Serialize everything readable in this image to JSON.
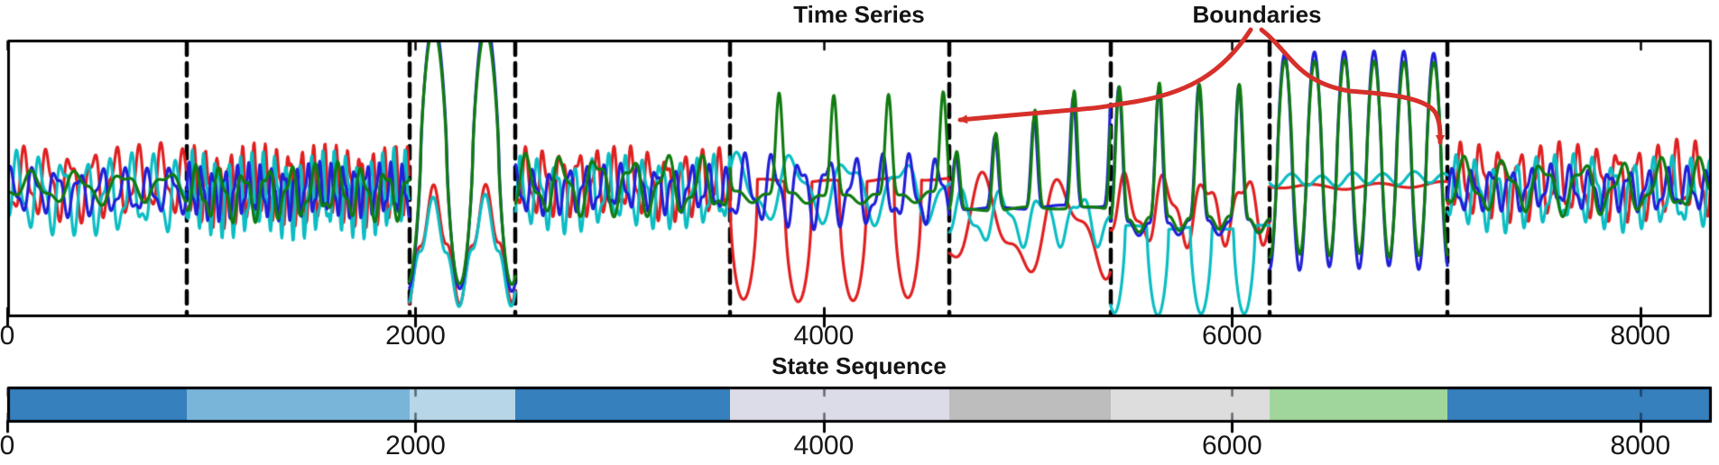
{
  "figure": {
    "background": "#ffffff",
    "time_series_title": "Time Series",
    "state_sequence_title": "State Sequence",
    "boundaries_label": "Boundaries",
    "annotation_color": "#d6302a"
  },
  "chart_data": [
    {
      "type": "line",
      "title": "Time Series",
      "x_range": [
        0,
        8350
      ],
      "x_ticks": [
        0,
        2000,
        4000,
        6000,
        8000
      ],
      "x_tick_labels": [
        "0",
        "2000",
        "4000",
        "6000",
        "8000"
      ],
      "grid": false,
      "legend": "none",
      "boundaries": [
        880,
        1970,
        2490,
        3540,
        4615,
        5405,
        6185,
        7055
      ],
      "boundary_style": {
        "color": "#000000",
        "dash": [
          14,
          9
        ],
        "width": 4.5
      },
      "annotation": {
        "label": "Boundaries",
        "label_x": 1393,
        "arrow_targets": [
          4615,
          7055
        ]
      },
      "series": [
        {
          "name": "red",
          "color": "#e02020"
        },
        {
          "name": "cyan",
          "color": "#0abdc3"
        },
        {
          "name": "blue",
          "color": "#2020d8"
        },
        {
          "name": "green",
          "color": "#107b10"
        }
      ],
      "segments": [
        {
          "x0": 0,
          "x1": 880,
          "pattern": "slow oscillation, all channels",
          "series": {
            "red": {
              "type": "osc",
              "base": 203,
              "amp": 40,
              "period": 112,
              "phase": 0.0,
              "seed": 1
            },
            "green": {
              "type": "osc",
              "base": 207,
              "amp": 18,
              "period": 220,
              "phase": 1.2,
              "seed": 2
            },
            "blue": {
              "type": "osc",
              "base": 212,
              "amp": 26,
              "period": 112,
              "phase": 3.8,
              "seed": 3
            },
            "cyan": {
              "type": "osc",
              "base": 216,
              "amp": 44,
              "period": 112,
              "phase": 2.0,
              "seed": 4
            }
          }
        },
        {
          "x0": 880,
          "x1": 1970,
          "pattern": "fast oscillation, all channels",
          "series": {
            "red": {
              "type": "osc",
              "base": 206,
              "amp": 44,
              "period": 58,
              "phase": 0.6,
              "seed": 5
            },
            "green": {
              "type": "osc",
              "base": 214,
              "amp": 30,
              "period": 116,
              "phase": 2.2,
              "seed": 6
            },
            "blue": {
              "type": "osc",
              "base": 212,
              "amp": 30,
              "period": 58,
              "phase": 3.4,
              "seed": 7
            },
            "cyan": {
              "type": "osc",
              "base": 216,
              "amp": 46,
              "period": 58,
              "phase": 1.7,
              "seed": 8
            }
          }
        },
        {
          "x0": 1970,
          "x1": 2490,
          "pattern": "large burst: green/blue up, red/cyan mirrored down",
          "series": {
            "green": {
              "type": "bigsin",
              "base": 175,
              "amp": 140,
              "period": 255,
              "phase": -1.35,
              "k": 0.72,
              "seed": 9
            },
            "blue": {
              "type": "bigsin",
              "base": 173,
              "amp": 150,
              "period": 255,
              "phase": -1.38,
              "k": 0.74,
              "seed": 10
            },
            "red": {
              "type": "bigsin",
              "base": 272,
              "amp": 66,
              "period": 255,
              "phase": -1.35,
              "k": 2.4,
              "seed": 11
            },
            "cyan": {
              "type": "bigsin",
              "base": 278,
              "amp": 62,
              "period": 255,
              "phase": -1.3,
              "k": 2.2,
              "seed": 12
            }
          }
        },
        {
          "x0": 2490,
          "x1": 3540,
          "pattern": "medium oscillation, all channels",
          "series": {
            "red": {
              "type": "osc",
              "base": 203,
              "amp": 38,
              "period": 86,
              "phase": 1.0,
              "seed": 13
            },
            "green": {
              "type": "osc",
              "base": 206,
              "amp": 34,
              "period": 172,
              "phase": 2.8,
              "seed": 14
            },
            "blue": {
              "type": "osc",
              "base": 210,
              "amp": 26,
              "period": 86,
              "phase": 4.6,
              "seed": 15
            },
            "cyan": {
              "type": "osc",
              "base": 214,
              "amp": 40,
              "period": 86,
              "phase": 2.9,
              "seed": 16
            }
          }
        },
        {
          "x0": 3540,
          "x1": 4615,
          "pattern": "ECG-like: deep red plateaus down, sharp green spikes up",
          "series": {
            "red": {
              "type": "dip",
              "base": 200,
              "amp": 132,
              "period": 268,
              "phase": 0.0,
              "p": 0.45,
              "seed": 17
            },
            "green": {
              "type": "spike",
              "base": 215,
              "amp": 112,
              "period": 268,
              "phase": 2.2,
              "n": 7,
              "seed": 18
            },
            "blue": {
              "type": "osc",
              "base": 212,
              "amp": 40,
              "period": 134,
              "phase": 1.1,
              "seed": 19
            },
            "cyan": {
              "type": "osc",
              "base": 210,
              "amp": 38,
              "period": 268,
              "phase": 3.8,
              "seed": 20
            }
          }
        },
        {
          "x0": 4615,
          "x1": 5405,
          "pattern": "growing green/blue peaks, slow red swell below",
          "series": {
            "green": {
              "type": "growspike",
              "base": 232,
              "amp0": 60,
              "amp1": 150,
              "period": 192,
              "phase": 0.4,
              "n": 4,
              "seed": 21
            },
            "blue": {
              "type": "growspike",
              "base": 230,
              "amp0": 55,
              "amp1": 140,
              "period": 192,
              "phase": 0.55,
              "n": 4,
              "seed": 22
            },
            "red": {
              "type": "osc",
              "base": 252,
              "amp": 58,
              "period": 384,
              "phase": 1.9,
              "seed": 23
            },
            "cyan": {
              "type": "osc",
              "base": 242,
              "amp": 30,
              "period": 192,
              "phase": 2.6,
              "seed": 24
            }
          }
        },
        {
          "x0": 5405,
          "x1": 6185,
          "pattern": "tall green/blue peaks, cyan deep dips, red wavy",
          "series": {
            "green": {
              "type": "spike",
              "base": 242,
              "amp": 148,
              "period": 196,
              "phase": 0.2,
              "n": 3.2,
              "seed": 25
            },
            "blue": {
              "type": "spike",
              "base": 246,
              "amp": 150,
              "period": 196,
              "phase": 0.28,
              "n": 3.2,
              "seed": 26
            },
            "red": {
              "type": "osc",
              "base": 232,
              "amp": 40,
              "period": 196,
              "phase": 2.4,
              "seed": 27
            },
            "cyan": {
              "type": "dip",
              "base": 252,
              "amp": 96,
              "period": 212,
              "phase": 1.0,
              "p": 0.6,
              "seed": 28
            }
          }
        },
        {
          "x0": 6185,
          "x1": 7055,
          "pattern": "regular large green/blue sinusoid, red/cyan flat",
          "series": {
            "green": {
              "type": "bigsin",
              "base": 176,
              "amp": 108,
              "period": 146,
              "phase": -1.6,
              "k": 0.85,
              "seed": 29
            },
            "blue": {
              "type": "bigsin",
              "base": 178,
              "amp": 120,
              "period": 146,
              "phase": -1.55,
              "k": 0.9,
              "seed": 30
            },
            "cyan": {
              "type": "flat",
              "base": 199,
              "amp": 8,
              "period": 150,
              "phase": 0.3,
              "seed": 31
            },
            "red": {
              "type": "flat",
              "base": 206,
              "amp": 4,
              "period": 320,
              "phase": 1.1,
              "seed": 32
            }
          }
        },
        {
          "x0": 7055,
          "x1": 8350,
          "pattern": "slow oscillation resumes, all channels",
          "series": {
            "red": {
              "type": "osc",
              "base": 202,
              "amp": 42,
              "period": 96,
              "phase": 0.4,
              "seed": 33
            },
            "green": {
              "type": "osc",
              "base": 207,
              "amp": 30,
              "period": 192,
              "phase": 1.9,
              "seed": 34
            },
            "blue": {
              "type": "osc",
              "base": 210,
              "amp": 24,
              "period": 96,
              "phase": 3.1,
              "seed": 35
            },
            "cyan": {
              "type": "osc",
              "base": 214,
              "amp": 40,
              "period": 96,
              "phase": 1.8,
              "seed": 36
            }
          }
        }
      ]
    },
    {
      "type": "state-sequence",
      "title": "State Sequence",
      "x_range": [
        0,
        8350
      ],
      "x_ticks": [
        0,
        2000,
        4000,
        6000,
        8000
      ],
      "x_tick_labels": [
        "0",
        "2000",
        "4000",
        "6000",
        "8000"
      ],
      "edges": [
        0,
        880,
        1970,
        2490,
        3540,
        4615,
        5405,
        6185,
        7055,
        8350
      ],
      "colors": [
        "#3580bd",
        "#79b5d9",
        "#b7d7e9",
        "#3580bd",
        "#dcdbe8",
        "#bdbdbd",
        "#dddddd",
        "#a0d69c",
        "#3580bd"
      ],
      "state_names": [
        "blue",
        "light-blue",
        "pale-blue",
        "blue",
        "lavender",
        "gray",
        "light-gray",
        "green",
        "blue"
      ]
    }
  ]
}
